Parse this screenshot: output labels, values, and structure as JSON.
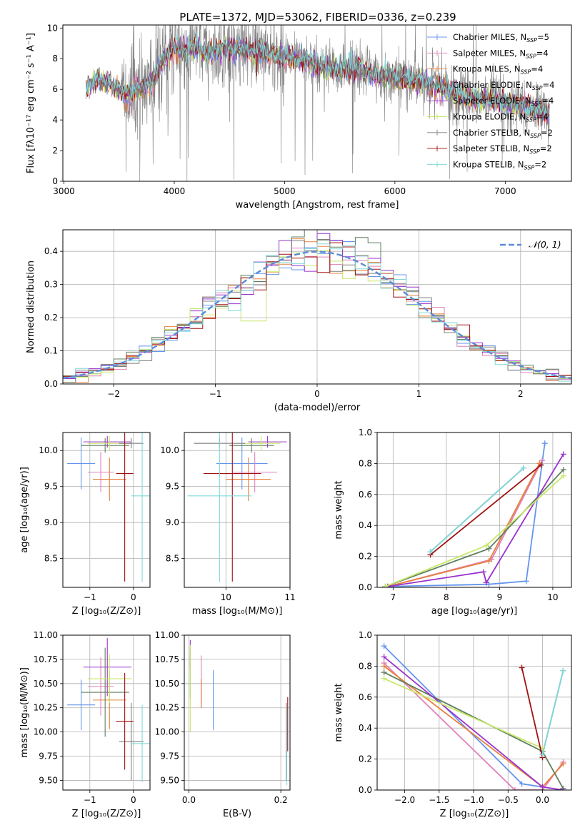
{
  "figure": {
    "title": "PLATE=1372, MJD=53062, FIBERID=0336, z=0.239"
  },
  "colors": {
    "chabrier_miles": "#6495ED",
    "salpeter_miles": "#E080B8",
    "kroupa_miles": "#E8803A",
    "chabrier_elodie": "#5F7F5F",
    "salpeter_elodie": "#9932CC",
    "kroupa_elodie": "#C8E868",
    "chabrier_stelib": "#808080",
    "salpeter_stelib": "#A01010",
    "kroupa_stelib": "#80D8D8",
    "gauss": "#5B8BD8"
  },
  "legend_spectrum": [
    {
      "key": "chabrier_miles",
      "label": "Chabrier MILES, N",
      "sub": "SSP",
      "tail": "=5"
    },
    {
      "key": "salpeter_miles",
      "label": "Salpeter MILES, N",
      "sub": "SSP",
      "tail": "=4"
    },
    {
      "key": "kroupa_miles",
      "label": "Kroupa MILES, N",
      "sub": "SSP",
      "tail": "=4"
    },
    {
      "key": "chabrier_elodie",
      "label": "Chabrier ELODIE, N",
      "sub": "SSP",
      "tail": "=4"
    },
    {
      "key": "salpeter_elodie",
      "label": "Salpeter ELODIE, N",
      "sub": "SSP",
      "tail": "=4"
    },
    {
      "key": "kroupa_elodie",
      "label": "Kroupa ELODIE, N",
      "sub": "SSP",
      "tail": "=4"
    },
    {
      "key": "chabrier_stelib",
      "label": "Chabrier STELIB, N",
      "sub": "SSP",
      "tail": "=2"
    },
    {
      "key": "salpeter_stelib",
      "label": "Salpeter STELIB, N",
      "sub": "SSP",
      "tail": "=2"
    },
    {
      "key": "kroupa_stelib",
      "label": "Kroupa STELIB, N",
      "sub": "SSP",
      "tail": "=2"
    }
  ],
  "chart_data": [
    {
      "id": "spectrum",
      "type": "line",
      "xlabel": "wavelength [Angstrom, rest frame]",
      "ylabel": "Flux [fλ10⁻¹⁷ erg cm⁻² s⁻¹ A⁻¹]",
      "xlim": [
        2990,
        7600
      ],
      "ylim": [
        0,
        10.2
      ],
      "xticks": [
        3000,
        4000,
        5000,
        6000,
        7000
      ],
      "yticks": [
        0,
        2,
        4,
        6,
        8,
        10
      ],
      "grid": false,
      "legend": "top-right",
      "data_range": [
        3200,
        7400
      ],
      "model_continuum": {
        "x": [
          3200,
          3300,
          3400,
          3500,
          3600,
          3700,
          3800,
          3900,
          4000,
          4100,
          4200,
          4300,
          4500,
          4700,
          4850,
          5000,
          5200,
          5400,
          5600,
          5800,
          6000,
          6200,
          6400,
          6600,
          6800,
          7000,
          7200,
          7400
        ],
        "y": [
          6.0,
          6.6,
          6.4,
          6.0,
          5.8,
          6.1,
          6.5,
          8.0,
          8.7,
          8.5,
          8.7,
          8.3,
          8.7,
          8.5,
          8.4,
          8.0,
          7.9,
          7.3,
          7.3,
          7.0,
          6.8,
          6.5,
          6.2,
          5.6,
          5.4,
          5.1,
          4.8,
          4.4
        ]
      }
    },
    {
      "id": "residuals",
      "type": "line",
      "xlabel": "(data-model)/error",
      "ylabel": "Normed distribution",
      "xlim": [
        -2.5,
        2.5
      ],
      "ylim": [
        0,
        0.465
      ],
      "xticks": [
        -2,
        -1,
        0,
        1,
        2
      ],
      "yticks": [
        0.0,
        0.1,
        0.2,
        0.3,
        0.4
      ],
      "grid": true,
      "legend": "top-right",
      "legend_label": "𝒩(0, 1)",
      "bins": 40
    },
    {
      "id": "age_vs_z",
      "type": "scatter",
      "xlabel": "Z [log₁₀(Z/Z⊙)]",
      "ylabel": "age  [log₁₀(age/yr)]",
      "xlim": [
        -1.62,
        0.38
      ],
      "ylim": [
        8.1,
        10.25
      ],
      "xticks": [
        -1,
        0
      ],
      "yticks": [
        8.5,
        9.0,
        9.5,
        10.0
      ],
      "grid": true,
      "points": [
        {
          "key": "chabrier_miles",
          "x": -1.2,
          "xerr": 0.32,
          "y": 9.82,
          "yerr": 0.36
        },
        {
          "key": "salpeter_miles",
          "x": -0.75,
          "xerr": 0.3,
          "y": 9.7,
          "yerr": 0.28
        },
        {
          "key": "kroupa_miles",
          "x": -0.55,
          "xerr": 0.38,
          "y": 9.6,
          "yerr": 0.3
        },
        {
          "key": "chabrier_elodie",
          "x": -0.65,
          "xerr": 0.55,
          "y": 10.07,
          "yerr": 0.1
        },
        {
          "key": "salpeter_elodie",
          "x": -0.6,
          "xerr": 0.55,
          "y": 10.12,
          "yerr": 0.08
        },
        {
          "key": "kroupa_elodie",
          "x": -0.55,
          "xerr": 0.5,
          "y": 10.1,
          "yerr": 0.1
        },
        {
          "key": "chabrier_stelib",
          "x": -0.05,
          "xerr": 0.28,
          "y": 10.1,
          "yerr": 0.07
        },
        {
          "key": "salpeter_stelib",
          "x": -0.2,
          "xerr": 0.2,
          "y": 9.68,
          "yerr": 1.5
        },
        {
          "key": "kroupa_stelib",
          "x": 0.2,
          "xerr": 0.25,
          "y": 9.37,
          "yerr": 1.2
        }
      ]
    },
    {
      "id": "age_vs_mass",
      "type": "scatter",
      "xlabel": "mass [log₁₀(M/M⊙)]",
      "ylabel": "",
      "xlim": [
        9.35,
        11.0
      ],
      "ylim": [
        8.1,
        10.25
      ],
      "xticks": [
        10,
        11
      ],
      "yticks": [
        8.5,
        9.0,
        9.5,
        10.0
      ],
      "grid": true,
      "points": [
        {
          "key": "chabrier_miles",
          "x": 10.25,
          "xerr": 0.4,
          "y": 9.82,
          "yerr": 0.36
        },
        {
          "key": "salpeter_miles",
          "x": 10.45,
          "xerr": 0.35,
          "y": 9.7,
          "yerr": 0.28
        },
        {
          "key": "kroupa_miles",
          "x": 10.35,
          "xerr": 0.35,
          "y": 9.6,
          "yerr": 0.3
        },
        {
          "key": "chabrier_elodie",
          "x": 10.4,
          "xerr": 0.35,
          "y": 10.07,
          "yerr": 0.1
        },
        {
          "key": "salpeter_elodie",
          "x": 10.65,
          "xerr": 0.3,
          "y": 10.12,
          "yerr": 0.08
        },
        {
          "key": "kroupa_elodie",
          "x": 10.55,
          "xerr": 0.3,
          "y": 10.1,
          "yerr": 0.1
        },
        {
          "key": "chabrier_stelib",
          "x": 9.9,
          "xerr": 0.4,
          "y": 10.1,
          "yerr": 0.07
        },
        {
          "key": "salpeter_stelib",
          "x": 10.1,
          "xerr": 0.45,
          "y": 9.68,
          "yerr": 1.5
        },
        {
          "key": "kroupa_stelib",
          "x": 9.9,
          "xerr": 0.5,
          "y": 9.37,
          "yerr": 1.2
        }
      ]
    },
    {
      "id": "weight_vs_age",
      "type": "line",
      "xlabel": "age  [log₁₀(age/yr)]",
      "ylabel": "mass weight",
      "xlim": [
        6.7,
        10.35
      ],
      "ylim": [
        0,
        1.0
      ],
      "xticks": [
        7,
        8,
        9,
        10
      ],
      "yticks": [
        0.0,
        0.2,
        0.4,
        0.6,
        0.8,
        1.0
      ],
      "grid": true,
      "series": [
        {
          "key": "chabrier_miles",
          "x": [
            6.85,
            8.8,
            9.5,
            9.85
          ],
          "y": [
            0.005,
            0.02,
            0.04,
            0.93
          ]
        },
        {
          "key": "salpeter_miles",
          "x": [
            6.9,
            8.85,
            9.8
          ],
          "y": [
            0.005,
            0.18,
            0.82
          ]
        },
        {
          "key": "kroupa_miles",
          "x": [
            6.9,
            8.8,
            9.75
          ],
          "y": [
            0.005,
            0.17,
            0.8
          ]
        },
        {
          "key": "chabrier_elodie",
          "x": [
            6.85,
            8.8,
            10.2
          ],
          "y": [
            0.005,
            0.25,
            0.76
          ]
        },
        {
          "key": "salpeter_elodie",
          "x": [
            6.9,
            8.7,
            8.75,
            10.2
          ],
          "y": [
            0.005,
            0.1,
            0.03,
            0.86
          ]
        },
        {
          "key": "kroupa_elodie",
          "x": [
            6.85,
            8.75,
            10.2
          ],
          "y": [
            0.005,
            0.27,
            0.72
          ]
        },
        {
          "key": "chabrier_stelib",
          "x": [
            7.7,
            9.45
          ],
          "y": [
            0.23,
            0.77
          ]
        },
        {
          "key": "salpeter_stelib",
          "x": [
            7.7,
            9.78
          ],
          "y": [
            0.21,
            0.79
          ]
        },
        {
          "key": "kroupa_stelib",
          "x": [
            7.7,
            9.45
          ],
          "y": [
            0.23,
            0.77
          ]
        }
      ]
    },
    {
      "id": "mass_vs_z",
      "type": "scatter",
      "xlabel": "Z [log₁₀(Z/Z⊙)]",
      "ylabel": "mass [log₁₀(M/M⊙)]",
      "xlim": [
        -1.62,
        0.38
      ],
      "ylim": [
        9.4,
        11.0
      ],
      "xticks": [
        -1,
        0
      ],
      "yticks": [
        9.5,
        9.75,
        10.0,
        10.25,
        10.5,
        10.75,
        11.0
      ],
      "grid": true,
      "points": [
        {
          "key": "chabrier_miles",
          "x": -1.2,
          "xerr": 0.32,
          "y": 10.28,
          "yerr": 0.26
        },
        {
          "key": "salpeter_miles",
          "x": -0.75,
          "xerr": 0.3,
          "y": 10.47,
          "yerr": 0.3
        },
        {
          "key": "kroupa_miles",
          "x": -0.55,
          "xerr": 0.38,
          "y": 10.33,
          "yerr": 0.3
        },
        {
          "key": "chabrier_elodie",
          "x": -0.65,
          "xerr": 0.55,
          "y": 10.41,
          "yerr": 0.46
        },
        {
          "key": "salpeter_elodie",
          "x": -0.6,
          "xerr": 0.55,
          "y": 10.67,
          "yerr": 0.3
        },
        {
          "key": "kroupa_elodie",
          "x": -0.55,
          "xerr": 0.5,
          "y": 10.55,
          "yerr": 0.25
        },
        {
          "key": "chabrier_stelib",
          "x": -0.05,
          "xerr": 0.28,
          "y": 9.9,
          "yerr": 0.4
        },
        {
          "key": "salpeter_stelib",
          "x": -0.2,
          "xerr": 0.2,
          "y": 10.11,
          "yerr": 0.5
        },
        {
          "key": "kroupa_stelib",
          "x": 0.2,
          "xerr": 0.25,
          "y": 9.88,
          "yerr": 0.4
        }
      ]
    },
    {
      "id": "mass_vs_ebv",
      "type": "scatter",
      "xlabel": "E(B-V)",
      "ylabel": "",
      "xlim": [
        -0.01,
        0.22
      ],
      "ylim": [
        9.4,
        11.0
      ],
      "xticks": [
        0.0,
        0.2
      ],
      "yticks": [
        9.5,
        9.75,
        10.0,
        10.25,
        10.5,
        10.75,
        11.0
      ],
      "grid": true,
      "points": [
        {
          "key": "chabrier_miles",
          "x": 0.053,
          "xerr": 0.0,
          "y": 10.33,
          "yerr": 0.31
        },
        {
          "key": "salpeter_miles",
          "x": 0.027,
          "xerr": 0.0,
          "y": 10.52,
          "yerr": 0.27
        },
        {
          "key": "kroupa_miles",
          "x": 0.027,
          "xerr": 0.0,
          "y": 10.4,
          "yerr": 0.15
        },
        {
          "key": "chabrier_elodie",
          "x": 0.003,
          "xerr": 0.0,
          "y": 10.6,
          "yerr": 0.25
        },
        {
          "key": "salpeter_elodie",
          "x": 0.003,
          "xerr": 0.0,
          "y": 10.8,
          "yerr": 0.15
        },
        {
          "key": "kroupa_elodie",
          "x": 0.003,
          "xerr": 0.0,
          "y": 10.45,
          "yerr": 0.45
        },
        {
          "key": "chabrier_stelib",
          "x": 0.212,
          "xerr": 0.0,
          "y": 9.9,
          "yerr": 0.4
        },
        {
          "key": "salpeter_stelib",
          "x": 0.215,
          "xerr": 0.0,
          "y": 10.08,
          "yerr": 0.28
        },
        {
          "key": "kroupa_stelib",
          "x": 0.213,
          "xerr": 0.0,
          "y": 9.85,
          "yerr": 0.4
        }
      ]
    },
    {
      "id": "weight_vs_z",
      "type": "line",
      "xlabel": "Z [log₁₀(Z/Z⊙)]",
      "ylabel": "mass weight",
      "xlim": [
        -2.4,
        0.42
      ],
      "ylim": [
        0,
        1.0
      ],
      "xticks": [
        -2.0,
        -1.5,
        -1.0,
        -0.5,
        0.0
      ],
      "yticks": [
        0.0,
        0.2,
        0.4,
        0.6,
        0.8,
        1.0
      ],
      "grid": true,
      "series": [
        {
          "key": "chabrier_miles",
          "x": [
            -2.3,
            -0.3,
            0.0
          ],
          "y": [
            0.93,
            0.04,
            0.02
          ]
        },
        {
          "key": "salpeter_miles",
          "x": [
            -2.3,
            -0.4,
            0.0,
            0.3
          ],
          "y": [
            0.82,
            0.0,
            0.0,
            0.18
          ]
        },
        {
          "key": "kroupa_miles",
          "x": [
            -2.3,
            0.0,
            0.3
          ],
          "y": [
            0.8,
            0.02,
            0.17
          ]
        },
        {
          "key": "chabrier_elodie",
          "x": [
            -2.3,
            0.0,
            0.3
          ],
          "y": [
            0.76,
            0.25,
            0.01
          ]
        },
        {
          "key": "salpeter_elodie",
          "x": [
            -2.3,
            0.0,
            0.3
          ],
          "y": [
            0.86,
            0.02,
            0.0
          ]
        },
        {
          "key": "kroupa_elodie",
          "x": [
            -2.3,
            0.0
          ],
          "y": [
            0.72,
            0.27
          ]
        },
        {
          "key": "chabrier_stelib",
          "x": [
            0.0,
            0.3
          ],
          "y": [
            0.23,
            0.77
          ]
        },
        {
          "key": "salpeter_stelib",
          "x": [
            -0.3,
            0.0
          ],
          "y": [
            0.79,
            0.21
          ]
        },
        {
          "key": "kroupa_stelib",
          "x": [
            0.0,
            0.3
          ],
          "y": [
            0.23,
            0.77
          ]
        }
      ]
    }
  ]
}
